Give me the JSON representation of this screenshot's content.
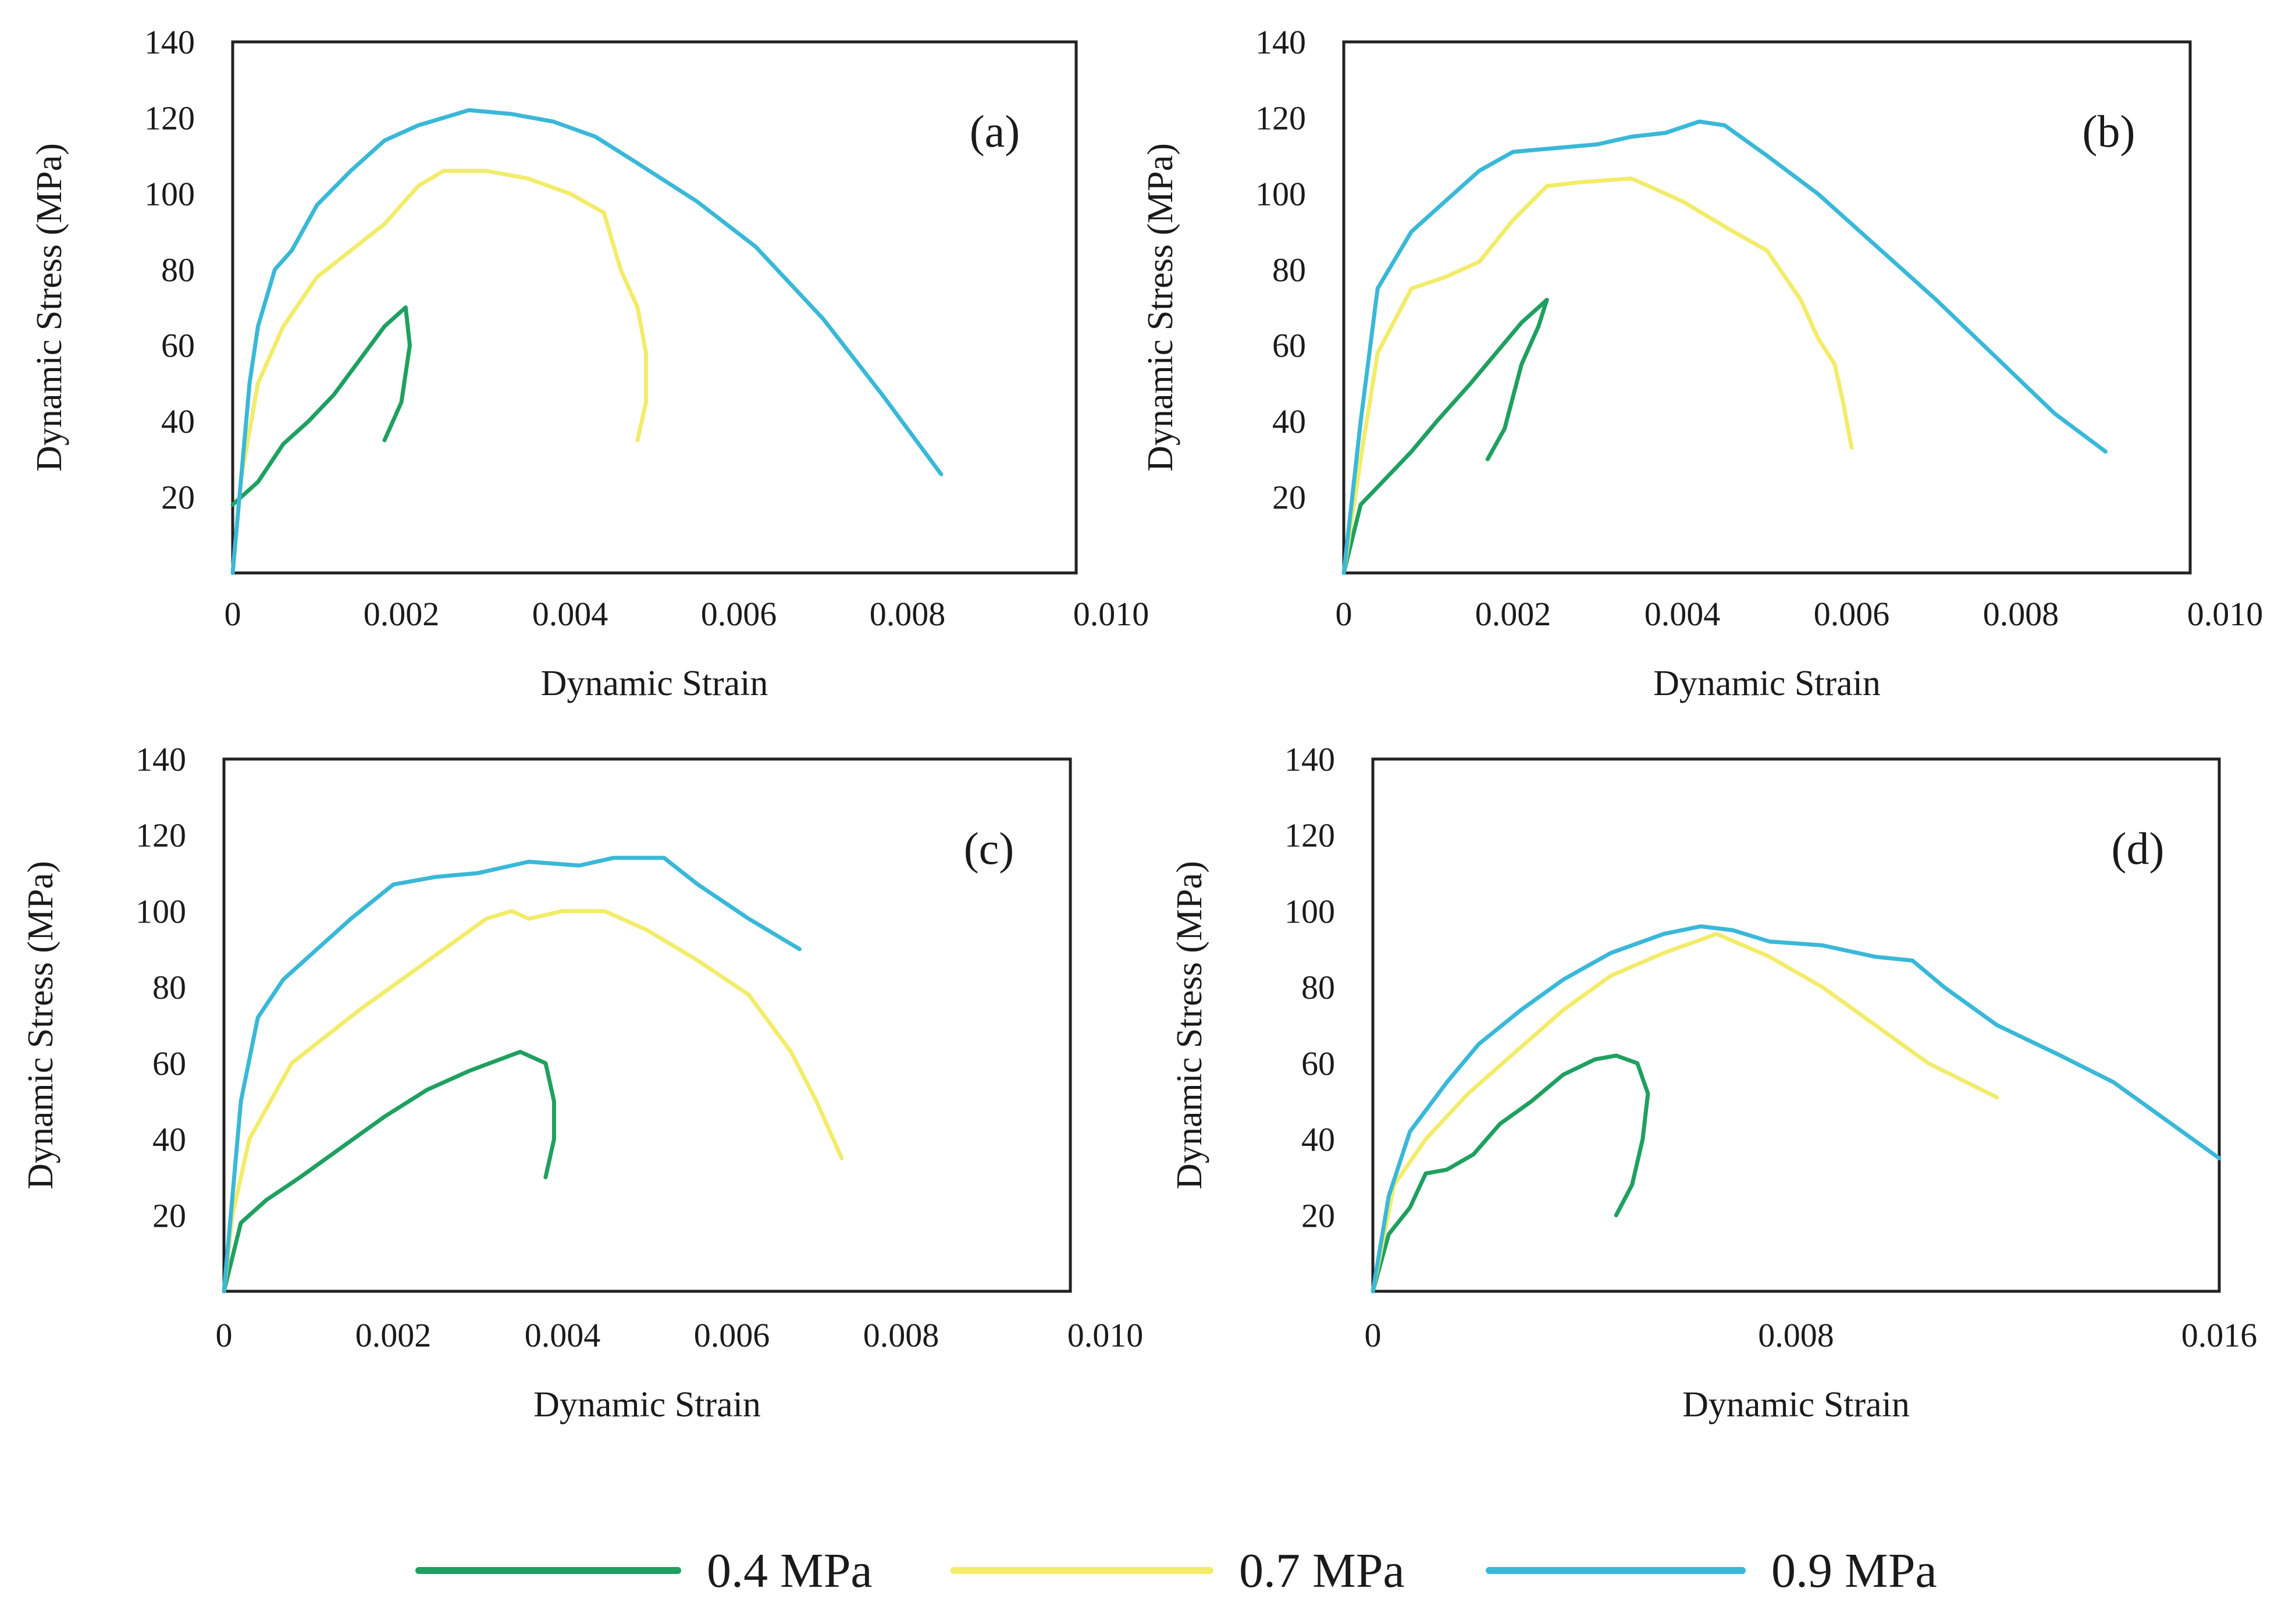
{
  "colors": {
    "s04": "#1fa060",
    "s07": "#f2ec6a",
    "s09": "#3ab8d8"
  },
  "legend": [
    {
      "name": "0.4 MPa",
      "color_key": "s04"
    },
    {
      "name": "0.7 MPa",
      "color_key": "s07"
    },
    {
      "name": "0.9 MPa",
      "color_key": "s09"
    }
  ],
  "chart_data": [
    {
      "type": "line",
      "label": "(a)",
      "xlabel": "Dynamic Strain",
      "ylabel": "Dynamic Stress (MPa)",
      "xlim": [
        0,
        0.01
      ],
      "ylim": [
        0,
        140
      ],
      "xticks": [
        "0",
        "0.002",
        "0.004",
        "0.006",
        "0.008",
        "0.010"
      ],
      "xtick_values": [
        0,
        0.002,
        0.004,
        0.006,
        0.008,
        0.01
      ],
      "yticks": [
        "20",
        "40",
        "60",
        "80",
        "100",
        "120",
        "140"
      ],
      "ytick_values": [
        20,
        40,
        60,
        80,
        100,
        120,
        140
      ],
      "series": [
        {
          "name": "0.4 MPa",
          "color_key": "s04",
          "points": [
            [
              0,
              18
            ],
            [
              0.0003,
              24
            ],
            [
              0.0006,
              34
            ],
            [
              0.0009,
              40
            ],
            [
              0.0012,
              47
            ],
            [
              0.0015,
              56
            ],
            [
              0.0018,
              65
            ],
            [
              0.00205,
              70
            ],
            [
              0.0021,
              60
            ],
            [
              0.002,
              45
            ],
            [
              0.0018,
              35
            ]
          ]
        },
        {
          "name": "0.7 MPa",
          "color_key": "s07",
          "points": [
            [
              0,
              0
            ],
            [
              0.0001,
              25
            ],
            [
              0.0003,
              50
            ],
            [
              0.0006,
              65
            ],
            [
              0.001,
              78
            ],
            [
              0.0014,
              85
            ],
            [
              0.0018,
              92
            ],
            [
              0.0022,
              102
            ],
            [
              0.0025,
              106
            ],
            [
              0.003,
              106
            ],
            [
              0.0035,
              104
            ],
            [
              0.004,
              100
            ],
            [
              0.0044,
              95
            ],
            [
              0.0046,
              80
            ],
            [
              0.0048,
              70
            ],
            [
              0.0049,
              58
            ],
            [
              0.0049,
              45
            ],
            [
              0.0048,
              35
            ]
          ]
        },
        {
          "name": "0.9 MPa",
          "color_key": "s09",
          "points": [
            [
              0,
              0
            ],
            [
              0.0001,
              25
            ],
            [
              0.0002,
              50
            ],
            [
              0.0003,
              65
            ],
            [
              0.0005,
              80
            ],
            [
              0.0007,
              85
            ],
            [
              0.001,
              97
            ],
            [
              0.0014,
              106
            ],
            [
              0.0018,
              114
            ],
            [
              0.0022,
              118
            ],
            [
              0.0028,
              122
            ],
            [
              0.0033,
              121
            ],
            [
              0.0038,
              119
            ],
            [
              0.0043,
              115
            ],
            [
              0.0048,
              108
            ],
            [
              0.0055,
              98
            ],
            [
              0.0062,
              86
            ],
            [
              0.007,
              67
            ],
            [
              0.0077,
              47
            ],
            [
              0.0084,
              26
            ]
          ]
        }
      ]
    },
    {
      "type": "line",
      "label": "(b)",
      "xlabel": "Dynamic Strain",
      "ylabel": "Dynamic Stress (MPa)",
      "xlim": [
        0,
        0.01
      ],
      "ylim": [
        0,
        140
      ],
      "xticks": [
        "0",
        "0.002",
        "0.004",
        "0.006",
        "0.008",
        "0.010"
      ],
      "xtick_values": [
        0,
        0.002,
        0.004,
        0.006,
        0.008,
        0.01
      ],
      "yticks": [
        "20",
        "40",
        "60",
        "80",
        "100",
        "120",
        "140"
      ],
      "ytick_values": [
        20,
        40,
        60,
        80,
        100,
        120,
        140
      ],
      "series": [
        {
          "name": "0.4 MPa",
          "color_key": "s04",
          "points": [
            [
              0,
              0
            ],
            [
              0.0002,
              18
            ],
            [
              0.0005,
              25
            ],
            [
              0.0008,
              32
            ],
            [
              0.0011,
              40
            ],
            [
              0.0015,
              50
            ],
            [
              0.0018,
              58
            ],
            [
              0.0021,
              66
            ],
            [
              0.0024,
              72
            ],
            [
              0.0023,
              65
            ],
            [
              0.0021,
              55
            ],
            [
              0.0019,
              38
            ],
            [
              0.0017,
              30
            ]
          ]
        },
        {
          "name": "0.7 MPa",
          "color_key": "s07",
          "points": [
            [
              0,
              0
            ],
            [
              0.0002,
              30
            ],
            [
              0.0004,
              58
            ],
            [
              0.0008,
              75
            ],
            [
              0.0012,
              78
            ],
            [
              0.0016,
              82
            ],
            [
              0.002,
              93
            ],
            [
              0.0024,
              102
            ],
            [
              0.0028,
              103
            ],
            [
              0.0034,
              104
            ],
            [
              0.004,
              98
            ],
            [
              0.0046,
              90
            ],
            [
              0.005,
              85
            ],
            [
              0.0054,
              72
            ],
            [
              0.0056,
              62
            ],
            [
              0.0058,
              55
            ],
            [
              0.0059,
              45
            ],
            [
              0.006,
              33
            ]
          ]
        },
        {
          "name": "0.9 MPa",
          "color_key": "s09",
          "points": [
            [
              0,
              0
            ],
            [
              0.0002,
              40
            ],
            [
              0.0004,
              75
            ],
            [
              0.0008,
              90
            ],
            [
              0.0012,
              98
            ],
            [
              0.0016,
              106
            ],
            [
              0.002,
              111
            ],
            [
              0.0025,
              112
            ],
            [
              0.003,
              113
            ],
            [
              0.0034,
              115
            ],
            [
              0.0038,
              116
            ],
            [
              0.0042,
              119
            ],
            [
              0.0045,
              118
            ],
            [
              0.005,
              110
            ],
            [
              0.0056,
              100
            ],
            [
              0.0063,
              86
            ],
            [
              0.007,
              72
            ],
            [
              0.0077,
              57
            ],
            [
              0.0084,
              42
            ],
            [
              0.009,
              32
            ]
          ]
        }
      ]
    },
    {
      "type": "line",
      "label": "(c)",
      "xlabel": "Dynamic Strain",
      "ylabel": "Dynamic Stress (MPa)",
      "xlim": [
        0,
        0.01
      ],
      "ylim": [
        0,
        140
      ],
      "xticks": [
        "0",
        "0.002",
        "0.004",
        "0.006",
        "0.008",
        "0.010"
      ],
      "xtick_values": [
        0,
        0.002,
        0.004,
        0.006,
        0.008,
        0.01
      ],
      "yticks": [
        "20",
        "40",
        "60",
        "80",
        "100",
        "120",
        "140"
      ],
      "ytick_values": [
        20,
        40,
        60,
        80,
        100,
        120,
        140
      ],
      "series": [
        {
          "name": "0.4 MPa",
          "color_key": "s04",
          "points": [
            [
              0,
              0
            ],
            [
              0.0002,
              18
            ],
            [
              0.0005,
              24
            ],
            [
              0.0009,
              30
            ],
            [
              0.0014,
              38
            ],
            [
              0.0019,
              46
            ],
            [
              0.0024,
              53
            ],
            [
              0.0029,
              58
            ],
            [
              0.0035,
              63
            ],
            [
              0.0038,
              60
            ],
            [
              0.0039,
              50
            ],
            [
              0.0039,
              40
            ],
            [
              0.0038,
              30
            ]
          ]
        },
        {
          "name": "0.7 MPa",
          "color_key": "s07",
          "points": [
            [
              0,
              0
            ],
            [
              0.0001,
              20
            ],
            [
              0.0003,
              40
            ],
            [
              0.0008,
              60
            ],
            [
              0.0012,
              67
            ],
            [
              0.0016,
              74
            ],
            [
              0.0021,
              82
            ],
            [
              0.0026,
              90
            ],
            [
              0.0031,
              98
            ],
            [
              0.0034,
              100
            ],
            [
              0.0036,
              98
            ],
            [
              0.004,
              100
            ],
            [
              0.0045,
              100
            ],
            [
              0.005,
              95
            ],
            [
              0.0056,
              87
            ],
            [
              0.0062,
              78
            ],
            [
              0.0067,
              63
            ],
            [
              0.007,
              50
            ],
            [
              0.0073,
              35
            ]
          ]
        },
        {
          "name": "0.9 MPa",
          "color_key": "s09",
          "points": [
            [
              0,
              0
            ],
            [
              0.0001,
              25
            ],
            [
              0.0002,
              50
            ],
            [
              0.0004,
              72
            ],
            [
              0.0007,
              82
            ],
            [
              0.0011,
              90
            ],
            [
              0.0015,
              98
            ],
            [
              0.002,
              107
            ],
            [
              0.0025,
              109
            ],
            [
              0.003,
              110
            ],
            [
              0.0036,
              113
            ],
            [
              0.0042,
              112
            ],
            [
              0.0046,
              114
            ],
            [
              0.0052,
              114
            ],
            [
              0.0056,
              107
            ],
            [
              0.0062,
              98
            ],
            [
              0.0068,
              90
            ]
          ]
        }
      ]
    },
    {
      "type": "line",
      "label": "(d)",
      "xlabel": "Dynamic Strain",
      "ylabel": "Dynamic Stress (MPa)",
      "xlim": [
        0,
        0.016
      ],
      "ylim": [
        0,
        140
      ],
      "xticks": [
        "0",
        "0.008",
        "0.016"
      ],
      "xtick_values": [
        0,
        0.008,
        0.016
      ],
      "yticks": [
        "20",
        "40",
        "60",
        "80",
        "100",
        "120",
        "140"
      ],
      "ytick_values": [
        20,
        40,
        60,
        80,
        100,
        120,
        140
      ],
      "series": [
        {
          "name": "0.4 MPa",
          "color_key": "s04",
          "points": [
            [
              0,
              0
            ],
            [
              0.0003,
              15
            ],
            [
              0.0007,
              22
            ],
            [
              0.001,
              31
            ],
            [
              0.0014,
              32
            ],
            [
              0.0019,
              36
            ],
            [
              0.0024,
              44
            ],
            [
              0.003,
              50
            ],
            [
              0.0036,
              57
            ],
            [
              0.0042,
              61
            ],
            [
              0.0046,
              62
            ],
            [
              0.005,
              60
            ],
            [
              0.0052,
              52
            ],
            [
              0.0051,
              40
            ],
            [
              0.0049,
              28
            ],
            [
              0.0046,
              20
            ]
          ]
        },
        {
          "name": "0.7 MPa",
          "color_key": "s07",
          "points": [
            [
              0,
              0
            ],
            [
              0.0004,
              28
            ],
            [
              0.001,
              40
            ],
            [
              0.0018,
              52
            ],
            [
              0.0027,
              63
            ],
            [
              0.0036,
              74
            ],
            [
              0.0045,
              83
            ],
            [
              0.0055,
              89
            ],
            [
              0.0065,
              94
            ],
            [
              0.0075,
              88
            ],
            [
              0.0085,
              80
            ],
            [
              0.0095,
              70
            ],
            [
              0.0105,
              60
            ],
            [
              0.0118,
              51
            ]
          ]
        },
        {
          "name": "0.9 MPa",
          "color_key": "s09",
          "points": [
            [
              0,
              0
            ],
            [
              0.0003,
              25
            ],
            [
              0.0007,
              42
            ],
            [
              0.0014,
              55
            ],
            [
              0.002,
              65
            ],
            [
              0.0028,
              74
            ],
            [
              0.0036,
              82
            ],
            [
              0.0045,
              89
            ],
            [
              0.0055,
              94
            ],
            [
              0.0062,
              96
            ],
            [
              0.0068,
              95
            ],
            [
              0.0075,
              92
            ],
            [
              0.0085,
              91
            ],
            [
              0.0095,
              88
            ],
            [
              0.0102,
              87
            ],
            [
              0.0108,
              80
            ],
            [
              0.0118,
              70
            ],
            [
              0.013,
              62
            ],
            [
              0.014,
              55
            ],
            [
              0.015,
              45
            ],
            [
              0.016,
              35
            ]
          ]
        }
      ]
    }
  ]
}
